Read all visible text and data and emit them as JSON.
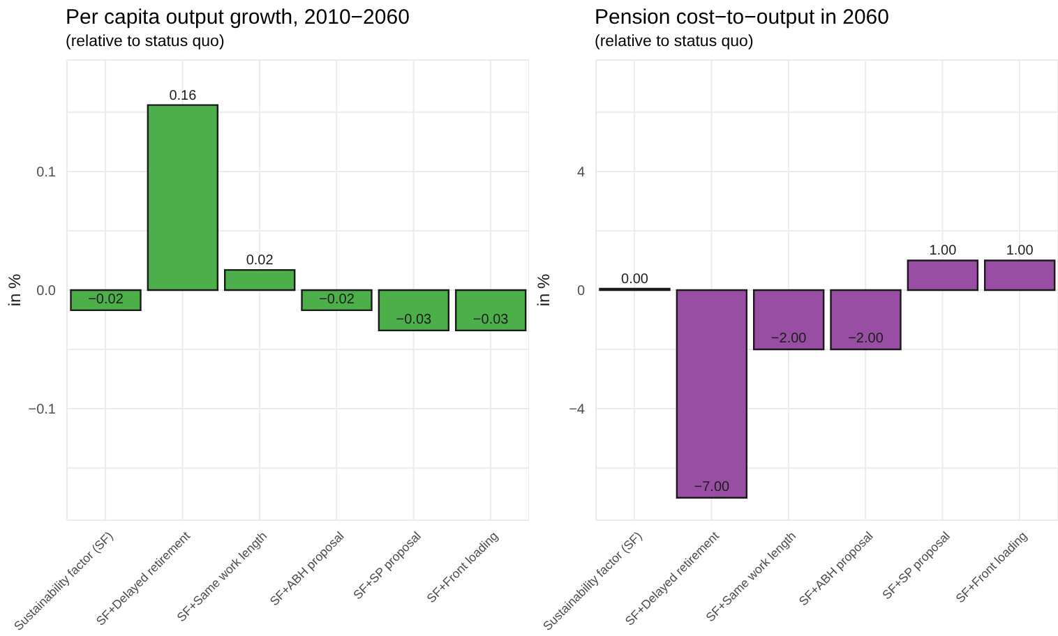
{
  "chart_data": [
    {
      "type": "bar",
      "title": "Per capita output growth, 2010−2060",
      "subtitle": "(relative to status quo)",
      "ylabel": "in %",
      "categories": [
        "Sustainability factor (SF)",
        "SF+Delayed retirement",
        "SF+Same work length",
        "SF+ABH proposal",
        "SF+SP proposal",
        "SF+Front loading"
      ],
      "series": [
        {
          "color": "#4daf4a",
          "values": [
            -0.017,
            0.156,
            0.017,
            -0.017,
            -0.034,
            -0.034
          ]
        }
      ],
      "value_labels": [
        "−0.02",
        "0.16",
        "0.02",
        "−0.02",
        "−0.03",
        "−0.03"
      ],
      "ylim": [
        -0.194,
        0.194
      ],
      "yticks": [
        {
          "value": -0.15,
          "label": null
        },
        {
          "value": -0.1,
          "label": "−0.1"
        },
        {
          "value": -0.05,
          "label": null
        },
        {
          "value": 0,
          "label": "0.0"
        },
        {
          "value": 0.05,
          "label": null
        },
        0.1,
        {
          "value": 0.15,
          "label": null
        }
      ],
      "grid": true,
      "legend": false
    },
    {
      "type": "bar",
      "title": "Pension cost−to−output in 2060",
      "subtitle": "(relative to status quo)",
      "ylabel": "in %",
      "categories": [
        "Sustainability factor (SF)",
        "SF+Delayed retirement",
        "SF+Same work length",
        "SF+ABH proposal",
        "SF+SP proposal",
        "SF+Front loading"
      ],
      "series": [
        {
          "color": "#984ea3",
          "values": [
            0,
            -7,
            -2,
            -2,
            1,
            1
          ]
        }
      ],
      "value_labels": [
        "0.00",
        "−7.00",
        "−2.00",
        "−2.00",
        "1.00",
        "1.00"
      ],
      "ylim": [
        -7.76,
        7.76
      ],
      "yticks": [
        {
          "value": -6,
          "label": null
        },
        {
          "value": -4,
          "label": "−4"
        },
        {
          "value": -2,
          "label": null
        },
        0,
        {
          "value": 2,
          "label": null
        },
        4,
        {
          "value": 6,
          "label": null
        }
      ],
      "grid": true,
      "legend": false
    }
  ]
}
